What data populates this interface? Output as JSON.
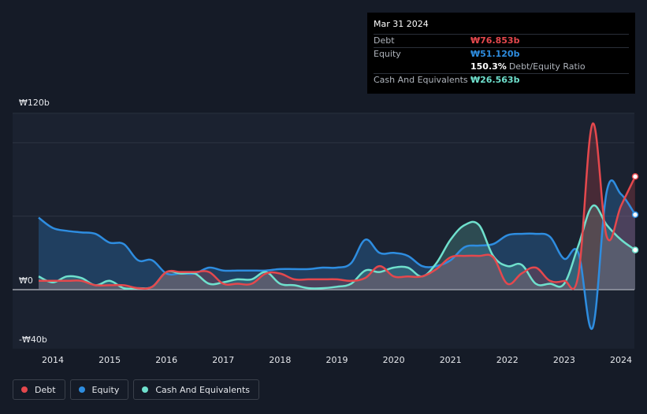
{
  "tooltip": {
    "date": "Mar 31 2024",
    "debt_label": "Debt",
    "debt_value": "₩76.853b",
    "equity_label": "Equity",
    "equity_value": "₩51.120b",
    "ratio_value": "150.3%",
    "ratio_label": "Debt/Equity Ratio",
    "cash_label": "Cash And Equivalents",
    "cash_value": "₩26.563b"
  },
  "colors": {
    "debt": "#e5484d",
    "equity": "#2e8de0",
    "cash": "#6fe0cd",
    "background": "#151b27"
  },
  "legend": [
    {
      "name": "Debt",
      "color": "#e5484d"
    },
    {
      "name": "Equity",
      "color": "#2e8de0"
    },
    {
      "name": "Cash And Equivalents",
      "color": "#6fe0cd"
    }
  ],
  "chart_data": {
    "type": "area",
    "y_tick_labels": [
      "₩120b",
      "₩0",
      "-₩40b"
    ],
    "ylim": [
      -40,
      120
    ],
    "xlim": [
      2013.65,
      2024.25
    ],
    "x_tick_labels": [
      "2014",
      "2015",
      "2016",
      "2017",
      "2018",
      "2019",
      "2020",
      "2021",
      "2022",
      "2023",
      "2024"
    ],
    "x_ticks": [
      2014,
      2015,
      2016,
      2017,
      2018,
      2019,
      2020,
      2021,
      2022,
      2023,
      2024
    ],
    "grid": true,
    "legend_position": "bottom-left",
    "series": [
      {
        "name": "Debt",
        "points": [
          [
            2013.75,
            6
          ],
          [
            2014.0,
            6
          ],
          [
            2014.25,
            6
          ],
          [
            2014.5,
            6
          ],
          [
            2014.75,
            3
          ],
          [
            2015.0,
            3
          ],
          [
            2015.25,
            3
          ],
          [
            2015.5,
            1
          ],
          [
            2015.75,
            2
          ],
          [
            2016.0,
            12
          ],
          [
            2016.25,
            12
          ],
          [
            2016.5,
            12
          ],
          [
            2016.75,
            12
          ],
          [
            2017.0,
            4
          ],
          [
            2017.25,
            4
          ],
          [
            2017.5,
            4
          ],
          [
            2017.75,
            11
          ],
          [
            2018.0,
            11
          ],
          [
            2018.25,
            7
          ],
          [
            2018.5,
            7
          ],
          [
            2018.75,
            7
          ],
          [
            2019.0,
            7
          ],
          [
            2019.25,
            6
          ],
          [
            2019.5,
            8
          ],
          [
            2019.75,
            16
          ],
          [
            2020.0,
            9
          ],
          [
            2020.25,
            9
          ],
          [
            2020.5,
            9
          ],
          [
            2020.75,
            14
          ],
          [
            2021.0,
            22
          ],
          [
            2021.25,
            23
          ],
          [
            2021.5,
            23
          ],
          [
            2021.75,
            22
          ],
          [
            2022.0,
            4
          ],
          [
            2022.25,
            11
          ],
          [
            2022.5,
            15
          ],
          [
            2022.75,
            6
          ],
          [
            2023.0,
            6
          ],
          [
            2023.25,
            10
          ],
          [
            2023.5,
            113
          ],
          [
            2023.75,
            36
          ],
          [
            2024.0,
            57
          ],
          [
            2024.25,
            77
          ]
        ]
      },
      {
        "name": "Equity",
        "points": [
          [
            2013.75,
            49
          ],
          [
            2014.0,
            42
          ],
          [
            2014.25,
            40
          ],
          [
            2014.5,
            39
          ],
          [
            2014.75,
            38
          ],
          [
            2015.0,
            32
          ],
          [
            2015.25,
            31
          ],
          [
            2015.5,
            20
          ],
          [
            2015.75,
            20
          ],
          [
            2016.0,
            11
          ],
          [
            2016.25,
            11
          ],
          [
            2016.5,
            11
          ],
          [
            2016.75,
            15
          ],
          [
            2017.0,
            13
          ],
          [
            2017.25,
            13
          ],
          [
            2017.5,
            13
          ],
          [
            2017.75,
            13
          ],
          [
            2018.0,
            14
          ],
          [
            2018.25,
            14
          ],
          [
            2018.5,
            14
          ],
          [
            2018.75,
            15
          ],
          [
            2019.0,
            15
          ],
          [
            2019.25,
            18
          ],
          [
            2019.5,
            34
          ],
          [
            2019.75,
            25
          ],
          [
            2020.0,
            25
          ],
          [
            2020.25,
            23
          ],
          [
            2020.5,
            16
          ],
          [
            2020.75,
            16
          ],
          [
            2021.0,
            20
          ],
          [
            2021.25,
            29
          ],
          [
            2021.5,
            30
          ],
          [
            2021.75,
            31
          ],
          [
            2022.0,
            37
          ],
          [
            2022.25,
            38
          ],
          [
            2022.5,
            38
          ],
          [
            2022.75,
            36
          ],
          [
            2023.0,
            21
          ],
          [
            2023.25,
            25
          ],
          [
            2023.5,
            -26
          ],
          [
            2023.75,
            67
          ],
          [
            2024.0,
            65
          ],
          [
            2024.25,
            51
          ]
        ]
      },
      {
        "name": "Cash And Equivalents",
        "points": [
          [
            2013.75,
            9
          ],
          [
            2014.0,
            5
          ],
          [
            2014.25,
            9
          ],
          [
            2014.5,
            8
          ],
          [
            2014.75,
            3
          ],
          [
            2015.0,
            6
          ],
          [
            2015.25,
            1
          ],
          [
            2015.5,
            1
          ],
          [
            2015.75,
            2
          ],
          [
            2016.0,
            12
          ],
          [
            2016.25,
            11
          ],
          [
            2016.5,
            11
          ],
          [
            2016.75,
            4
          ],
          [
            2017.0,
            5
          ],
          [
            2017.25,
            7
          ],
          [
            2017.5,
            7
          ],
          [
            2017.75,
            12
          ],
          [
            2018.0,
            4
          ],
          [
            2018.25,
            3
          ],
          [
            2018.5,
            1
          ],
          [
            2018.75,
            1
          ],
          [
            2019.0,
            2
          ],
          [
            2019.25,
            4
          ],
          [
            2019.5,
            13
          ],
          [
            2019.75,
            12
          ],
          [
            2020.0,
            15
          ],
          [
            2020.25,
            15
          ],
          [
            2020.5,
            9
          ],
          [
            2020.75,
            18
          ],
          [
            2021.0,
            34
          ],
          [
            2021.25,
            44
          ],
          [
            2021.5,
            44
          ],
          [
            2021.75,
            23
          ],
          [
            2022.0,
            16
          ],
          [
            2022.25,
            17
          ],
          [
            2022.5,
            4
          ],
          [
            2022.75,
            4
          ],
          [
            2023.0,
            4
          ],
          [
            2023.25,
            30
          ],
          [
            2023.5,
            57
          ],
          [
            2023.75,
            44
          ],
          [
            2024.0,
            34
          ],
          [
            2024.25,
            27
          ]
        ]
      }
    ]
  }
}
